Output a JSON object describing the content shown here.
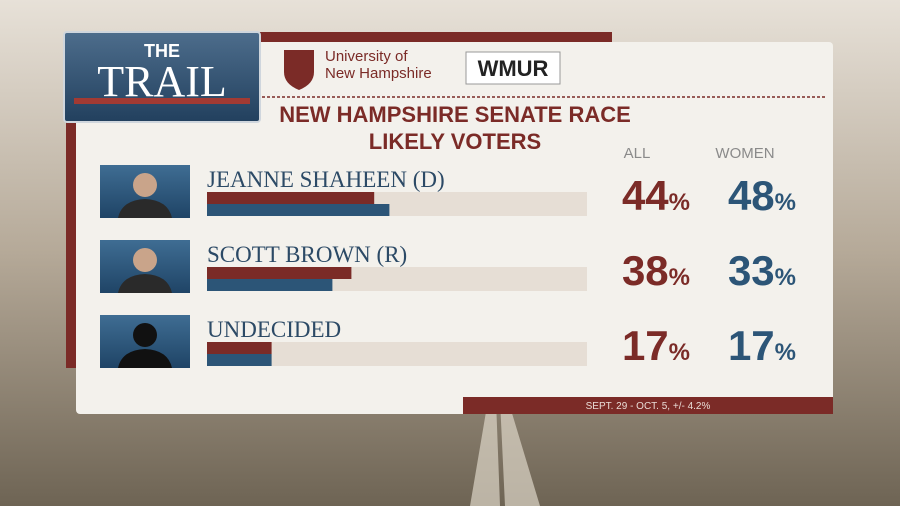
{
  "logo": {
    "line1": "THE",
    "line2": "TRAIL"
  },
  "sponsors": {
    "university_line1": "University of",
    "university_line2": "New Hampshire",
    "station": "WMUR"
  },
  "chart_data": {
    "type": "bar",
    "orientation": "horizontal",
    "title": "NEW HAMPSHIRE SENATE RACE",
    "subtitle": "LIKELY VOTERS",
    "categories": [
      "JEANNE SHAHEEN (D)",
      "SCOTT BROWN (R)",
      "UNDECIDED"
    ],
    "series": [
      {
        "name": "ALL",
        "color": "#7b2b27",
        "values": [
          44,
          38,
          17
        ],
        "value_labels": [
          "44%",
          "38%",
          "17%"
        ]
      },
      {
        "name": "WOMEN",
        "color": "#2c5577",
        "values": [
          48,
          33,
          17
        ],
        "value_labels": [
          "48%",
          "33%",
          "17%"
        ]
      }
    ],
    "xlim": [
      0,
      100
    ],
    "footnote": "SEPT. 29 - OCT. 5, +/- 4.2%"
  }
}
